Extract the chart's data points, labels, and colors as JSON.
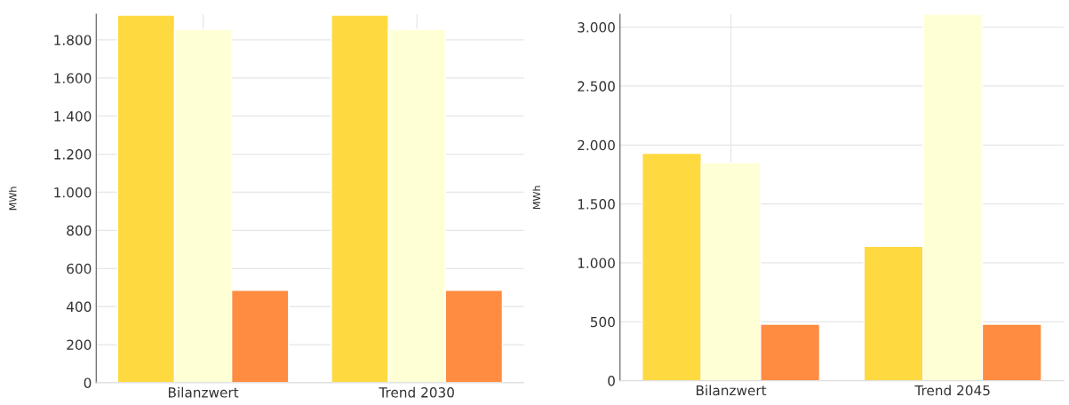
{
  "chart_data": [
    {
      "type": "bar",
      "ylabel": "MWh",
      "categories": [
        "Bilanzwert",
        "Trend 2030"
      ],
      "series": [
        {
          "color": "#ffd940",
          "values": [
            1930,
            1930
          ]
        },
        {
          "color": "#ffffd6",
          "values": [
            1855,
            1855
          ]
        },
        {
          "color": "#ff8c40",
          "values": [
            485,
            485
          ]
        }
      ],
      "ylim": [
        0,
        1935
      ],
      "yticks": [
        0,
        200,
        400,
        600,
        800,
        {
          "value": 1000,
          "label": "1.000"
        },
        {
          "value": 1200,
          "label": "1.200"
        },
        {
          "value": 1400,
          "label": "1.400"
        },
        {
          "value": 1600,
          "label": "1.600"
        },
        {
          "value": 1800,
          "label": "1.800"
        }
      ],
      "grid": true
    },
    {
      "type": "bar",
      "ylabel": "MWh",
      "categories": [
        "Bilanzwert",
        "Trend 2045"
      ],
      "series": [
        {
          "color": "#ffd940",
          "values": [
            1930,
            1140
          ]
        },
        {
          "color": "#ffffd6",
          "values": [
            1850,
            3110
          ]
        },
        {
          "color": "#ff8c40",
          "values": [
            480,
            480
          ]
        }
      ],
      "ylim": [
        0,
        3110
      ],
      "yticks": [
        0,
        500,
        {
          "value": 1000,
          "label": "1.000"
        },
        {
          "value": 1500,
          "label": "1.500"
        },
        {
          "value": 2000,
          "label": "2.000"
        },
        {
          "value": 2500,
          "label": "2.500"
        },
        {
          "value": 3000,
          "label": "3.000"
        }
      ],
      "grid": true
    }
  ]
}
